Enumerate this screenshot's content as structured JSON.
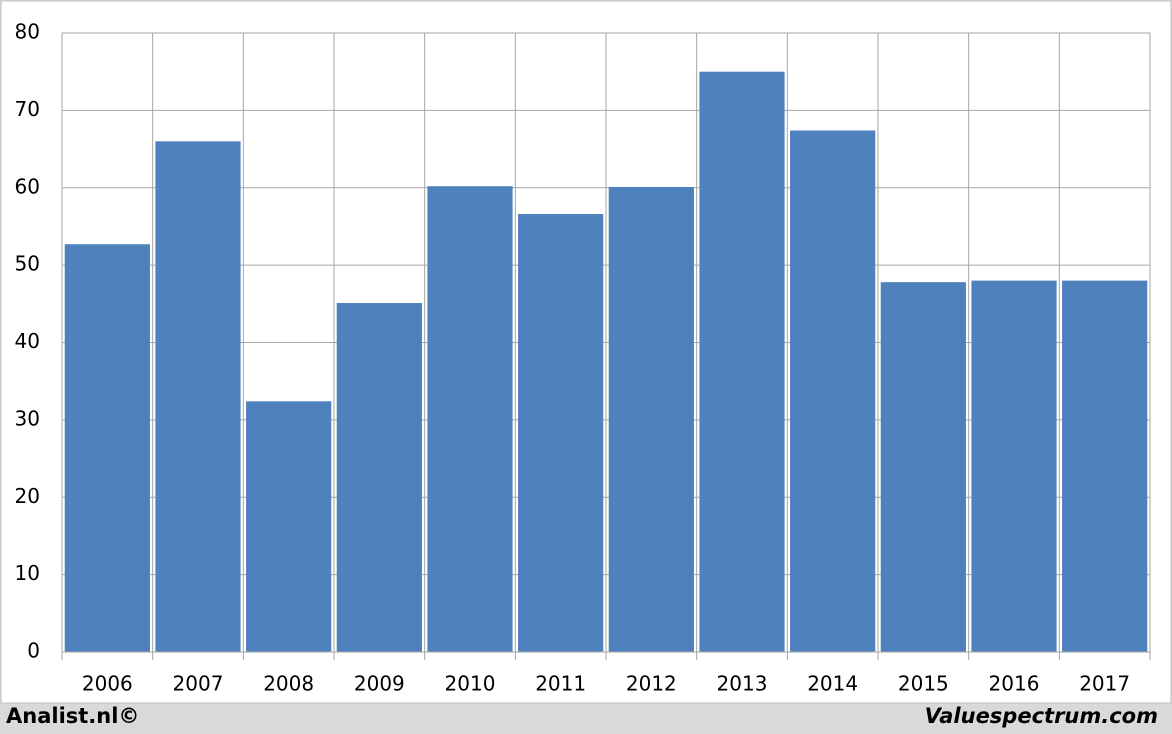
{
  "chart_data": {
    "type": "bar",
    "categories": [
      "2006",
      "2007",
      "2008",
      "2009",
      "2010",
      "2011",
      "2012",
      "2013",
      "2014",
      "2015",
      "2016",
      "2017"
    ],
    "values": [
      52.7,
      66,
      32.4,
      45.1,
      60.2,
      56.6,
      60.1,
      75,
      67.4,
      47.8,
      48,
      48
    ],
    "color": "#4f81bd",
    "ylim": [
      0,
      80
    ],
    "yticks": [
      0,
      10,
      20,
      30,
      40,
      50,
      60,
      70,
      80
    ],
    "grid": true,
    "source": "Analist.nl©",
    "credit": "Valuespectrum.com"
  }
}
